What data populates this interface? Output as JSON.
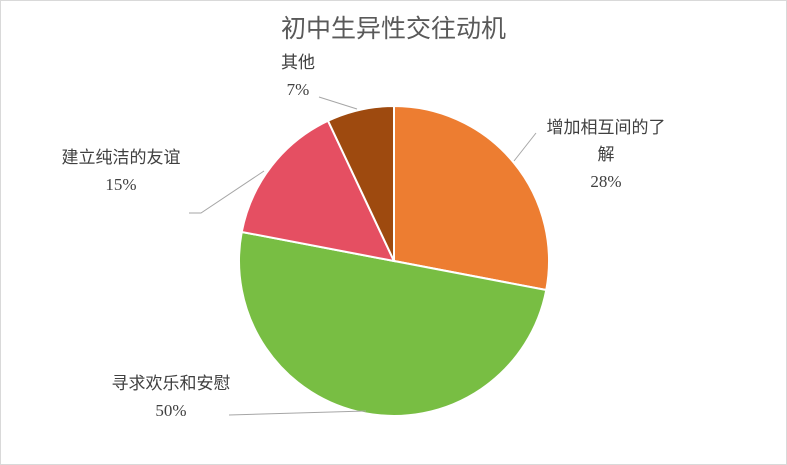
{
  "chart_data": {
    "type": "pie",
    "title": "初中生异性交往动机",
    "categories": [
      "增加相互间的了解",
      "寻求欢乐和安慰",
      "建立纯洁的友谊",
      "其他"
    ],
    "values": [
      28,
      50,
      15,
      7
    ],
    "value_labels": [
      "28%",
      "50%",
      "15%",
      "7%"
    ],
    "colors": [
      "#ED7D31",
      "#78BE43",
      "#E54F62",
      "#9E4A0F"
    ]
  }
}
